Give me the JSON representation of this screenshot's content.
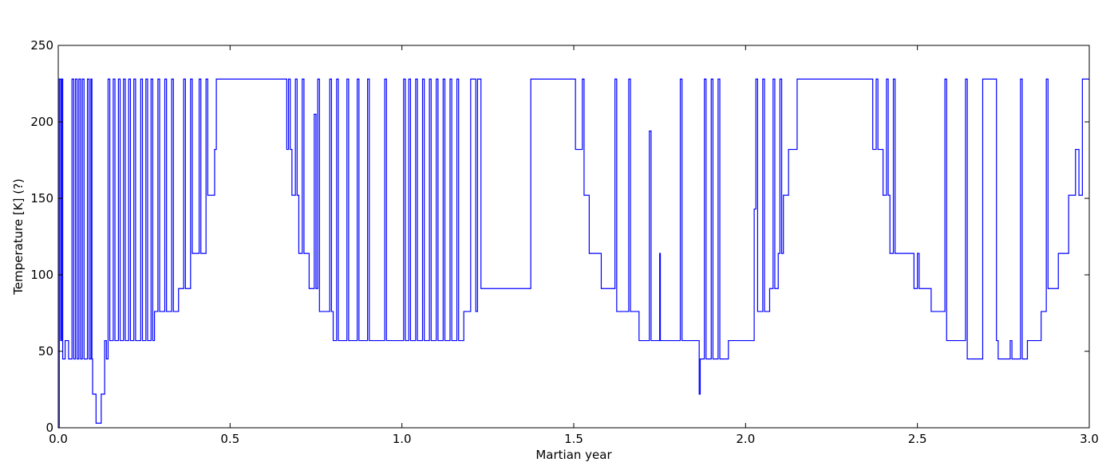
{
  "chart_data": {
    "type": "line",
    "drawstyle": "steps-post",
    "xlabel": "Martian year",
    "ylabel": "Temperature [K] (?)",
    "xlim": [
      0,
      3
    ],
    "ylim": [
      0,
      250
    ],
    "xticks": [
      {
        "value": 0,
        "label": "0.0"
      },
      0.5,
      {
        "value": 1,
        "label": "1.0"
      },
      1.5,
      {
        "value": 2,
        "label": "2.0"
      },
      2.5,
      {
        "value": 3,
        "label": "3.0"
      }
    ],
    "yticks": [
      0,
      50,
      100,
      150,
      200,
      250
    ],
    "x": [
      0,
      0.003,
      0.007,
      0.01,
      0.013,
      0.02,
      0.03,
      0.04,
      0.045,
      0.05,
      0.055,
      0.06,
      0.065,
      0.07,
      0.075,
      0.085,
      0.09,
      0.095,
      0.098,
      0.1,
      0.11,
      0.125,
      0.135,
      0.14,
      0.145,
      0.15,
      0.16,
      0.165,
      0.175,
      0.18,
      0.19,
      0.195,
      0.205,
      0.21,
      0.22,
      0.225,
      0.24,
      0.245,
      0.255,
      0.26,
      0.27,
      0.275,
      0.28,
      0.29,
      0.295,
      0.31,
      0.315,
      0.33,
      0.335,
      0.35,
      0.365,
      0.37,
      0.385,
      0.39,
      0.41,
      0.415,
      0.43,
      0.435,
      0.455,
      0.46,
      0.665,
      0.67,
      0.675,
      0.68,
      0.69,
      0.695,
      0.7,
      0.71,
      0.715,
      0.73,
      0.745,
      0.75,
      0.755,
      0.76,
      0.79,
      0.795,
      0.8,
      0.81,
      0.815,
      0.84,
      0.845,
      0.87,
      0.875,
      0.9,
      0.905,
      0.95,
      0.955,
      1.005,
      1.01,
      1.02,
      1.025,
      1.04,
      1.045,
      1.06,
      1.065,
      1.08,
      1.085,
      1.1,
      1.105,
      1.12,
      1.125,
      1.14,
      1.145,
      1.16,
      1.165,
      1.18,
      1.2,
      1.215,
      1.22,
      1.23,
      1.375,
      1.505,
      1.525,
      1.53,
      1.545,
      1.58,
      1.62,
      1.625,
      1.66,
      1.665,
      1.69,
      1.72,
      1.725,
      1.75,
      1.752,
      1.81,
      1.815,
      1.865,
      1.868,
      1.88,
      1.885,
      1.9,
      1.905,
      1.92,
      1.925,
      1.95,
      2.025,
      2.03,
      2.035,
      2.05,
      2.055,
      2.07,
      2.08,
      2.085,
      2.095,
      2.1,
      2.105,
      2.11,
      2.125,
      2.15,
      2.37,
      2.38,
      2.385,
      2.4,
      2.41,
      2.415,
      2.42,
      2.43,
      2.435,
      2.49,
      2.5,
      2.505,
      2.54,
      2.58,
      2.585,
      2.64,
      2.645,
      2.69,
      2.73,
      2.735,
      2.77,
      2.775,
      2.8,
      2.805,
      2.82,
      2.86,
      2.875,
      2.88,
      2.91,
      2.94,
      2.96,
      2.97,
      2.98,
      3.0
    ],
    "series": [
      {
        "color": "#0000ff",
        "values": [
          0,
          228,
          57,
          228,
          45,
          57,
          45,
          228,
          45,
          228,
          45,
          228,
          45,
          228,
          45,
          228,
          45,
          228,
          45,
          22,
          3,
          22,
          57,
          45,
          228,
          57,
          228,
          57,
          228,
          57,
          228,
          57,
          228,
          57,
          228,
          57,
          228,
          57,
          228,
          57,
          228,
          57,
          76,
          228,
          76,
          228,
          76,
          228,
          76,
          91,
          228,
          91,
          228,
          114,
          228,
          114,
          228,
          152,
          182,
          228,
          182,
          228,
          182,
          152,
          228,
          152,
          114,
          228,
          114,
          91,
          205,
          91,
          228,
          76,
          228,
          76,
          57,
          228,
          57,
          228,
          57,
          228,
          57,
          228,
          57,
          228,
          57,
          228,
          57,
          228,
          57,
          228,
          57,
          228,
          57,
          228,
          57,
          228,
          57,
          228,
          57,
          228,
          57,
          228,
          57,
          76,
          228,
          76,
          228,
          91,
          228,
          182,
          228,
          152,
          114,
          91,
          228,
          76,
          228,
          76,
          57,
          194,
          57,
          114,
          57,
          228,
          57,
          22,
          45,
          228,
          45,
          228,
          45,
          228,
          45,
          57,
          143,
          228,
          76,
          228,
          76,
          91,
          228,
          91,
          114,
          228,
          114,
          152,
          182,
          228,
          182,
          228,
          182,
          152,
          228,
          152,
          114,
          228,
          114,
          91,
          114,
          91,
          76,
          228,
          57,
          228,
          45,
          228,
          57,
          45,
          57,
          45,
          228,
          45,
          57,
          76,
          228,
          91,
          114,
          152,
          182,
          152,
          228,
          228
        ]
      }
    ]
  }
}
